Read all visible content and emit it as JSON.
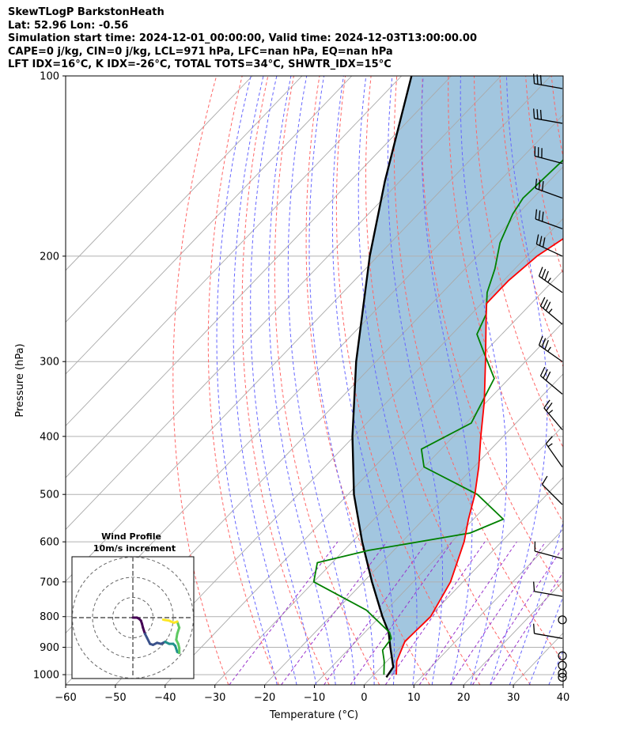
{
  "title_lines": [
    "SkewTLogP BarkstonHeath",
    "Lat: 52.96   Lon: -0.56",
    "Simulation start time: 2024-12-01_00:00:00, Valid time: 2024-12-03T13:00:00.00",
    "CAPE=0 j/kg, CIN=0 j/kg, LCL=971 hPa, LFC=nan hPa, EQ=nan hPa",
    "LFT IDX=16°C, K IDX=-26°C, TOTAL TOTS=34°C, SHWTR_IDX=15°C"
  ],
  "chart_data": {
    "type": "line",
    "xlabel": "Temperature (°C)",
    "ylabel": "Pressure (hPa)",
    "xlim": [
      -60,
      40
    ],
    "ylim": [
      1040,
      100
    ],
    "y_scale": "log",
    "x_ticks": [
      -60,
      -50,
      -40,
      -30,
      -20,
      -10,
      0,
      10,
      20,
      30,
      40
    ],
    "x_tick_labels": [
      "−60",
      "−50",
      "−40",
      "−30",
      "−20",
      "−10",
      "0",
      "10",
      "20",
      "30",
      "40"
    ],
    "y_ticks": [
      100,
      200,
      300,
      400,
      500,
      600,
      700,
      800,
      900,
      1000
    ],
    "y_tick_labels": [
      "100",
      "200",
      "300",
      "400",
      "500",
      "600",
      "700",
      "800",
      "900",
      "1000"
    ],
    "grid": true,
    "colors": {
      "temperature": "#ff0000",
      "dewpoint": "#008000",
      "parcel": "#000000",
      "cape_fill": "#a2c6df",
      "dry_adiabat": "#ff6666",
      "moist_adiabat": "#6666ff",
      "mixing_ratio": "#9933cc",
      "isotherm": "#aaaaaa"
    },
    "series": [
      {
        "key": "temperature",
        "points": [
          [
            1000,
            4.5
          ],
          [
            950,
            2
          ],
          [
            880,
            -0.2
          ],
          [
            800,
            0.2
          ],
          [
            700,
            -2.5
          ],
          [
            600,
            -7.5
          ],
          [
            550,
            -11
          ],
          [
            500,
            -14.5
          ],
          [
            450,
            -19
          ],
          [
            400,
            -24.5
          ],
          [
            350,
            -30.5
          ],
          [
            300,
            -38
          ],
          [
            250,
            -47
          ],
          [
            240,
            -49
          ],
          [
            220,
            -49
          ],
          [
            200,
            -48
          ],
          [
            180,
            -45
          ],
          [
            160,
            -43
          ],
          [
            150,
            -41.5
          ],
          [
            140,
            -42
          ],
          [
            120,
            -43
          ],
          [
            100,
            -45
          ]
        ]
      },
      {
        "key": "dewpoint",
        "points": [
          [
            1000,
            2
          ],
          [
            950,
            -0.5
          ],
          [
            910,
            -3
          ],
          [
            870,
            -3.5
          ],
          [
            850,
            -5
          ],
          [
            780,
            -14
          ],
          [
            700,
            -30
          ],
          [
            650,
            -33
          ],
          [
            620,
            -25
          ],
          [
            580,
            -8
          ],
          [
            550,
            -4
          ],
          [
            500,
            -14
          ],
          [
            450,
            -30
          ],
          [
            420,
            -34
          ],
          [
            380,
            -29
          ],
          [
            320,
            -33
          ],
          [
            290,
            -40
          ],
          [
            270,
            -45
          ],
          [
            250,
            -47
          ],
          [
            230,
            -51
          ],
          [
            210,
            -54
          ],
          [
            190,
            -58
          ],
          [
            170,
            -61
          ],
          [
            160,
            -62
          ],
          [
            130,
            -61
          ],
          [
            115,
            -59
          ],
          [
            100,
            -57
          ]
        ]
      },
      {
        "key": "parcel",
        "points": [
          [
            1010,
            3
          ],
          [
            971,
            2.4
          ],
          [
            900,
            -2
          ],
          [
            850,
            -5.2
          ],
          [
            800,
            -9.5
          ],
          [
            700,
            -18.3
          ],
          [
            600,
            -28
          ],
          [
            500,
            -38.8
          ],
          [
            400,
            -50.3
          ],
          [
            300,
            -64
          ],
          [
            200,
            -81.6
          ],
          [
            150,
            -93
          ],
          [
            100,
            -108
          ]
        ]
      }
    ],
    "wind_barbs": [
      {
        "p": 105,
        "speed": 30,
        "dir": 280
      },
      {
        "p": 120,
        "speed": 30,
        "dir": 280
      },
      {
        "p": 140,
        "speed": 30,
        "dir": 285
      },
      {
        "p": 160,
        "speed": 30,
        "dir": 290
      },
      {
        "p": 180,
        "speed": 30,
        "dir": 290
      },
      {
        "p": 200,
        "speed": 30,
        "dir": 295
      },
      {
        "p": 230,
        "speed": 35,
        "dir": 305
      },
      {
        "p": 260,
        "speed": 35,
        "dir": 310
      },
      {
        "p": 300,
        "speed": 35,
        "dir": 305
      },
      {
        "p": 340,
        "speed": 30,
        "dir": 310
      },
      {
        "p": 390,
        "speed": 25,
        "dir": 320
      },
      {
        "p": 450,
        "speed": 15,
        "dir": 325
      },
      {
        "p": 520,
        "speed": 10,
        "dir": 315
      },
      {
        "p": 640,
        "speed": 10,
        "dir": 285
      },
      {
        "p": 740,
        "speed": 10,
        "dir": 280
      },
      {
        "p": 810,
        "speed": 0,
        "dir": 0
      },
      {
        "p": 870,
        "speed": 10,
        "dir": 280
      },
      {
        "p": 930,
        "speed": 0,
        "dir": 0
      },
      {
        "p": 965,
        "speed": 0,
        "dir": 0
      },
      {
        "p": 995,
        "speed": 0,
        "dir": 0
      },
      {
        "p": 1010,
        "speed": 0,
        "dir": 0
      }
    ],
    "inset": {
      "title_line1": "Wind Profile",
      "title_line2": "10m/s increment",
      "rings": [
        10,
        20,
        30
      ],
      "hodograph_colors": [
        "#440154",
        "#3b528b",
        "#21918c",
        "#5ec962",
        "#fde725"
      ],
      "hodograph_uv": [
        [
          0,
          0
        ],
        [
          2,
          0
        ],
        [
          3,
          -0.5
        ],
        [
          4,
          -1.5
        ],
        [
          4.5,
          -3
        ],
        [
          5,
          -5
        ],
        [
          6,
          -8
        ],
        [
          7,
          -10
        ],
        [
          8.5,
          -13
        ],
        [
          10,
          -13.5
        ],
        [
          12,
          -12.5
        ],
        [
          14,
          -13
        ],
        [
          16,
          -12
        ],
        [
          18,
          -13
        ],
        [
          20,
          -13
        ],
        [
          21,
          -14
        ],
        [
          22,
          -17
        ],
        [
          23,
          -17.5
        ],
        [
          23,
          -15
        ],
        [
          22.5,
          -13
        ],
        [
          21.5,
          -11
        ],
        [
          22,
          -8
        ],
        [
          23,
          -5
        ],
        [
          22,
          -2
        ],
        [
          20.5,
          -2.5
        ],
        [
          19,
          -2
        ],
        [
          18,
          -1.5
        ],
        [
          16,
          -1.2
        ],
        [
          15,
          -1
        ]
      ]
    }
  }
}
